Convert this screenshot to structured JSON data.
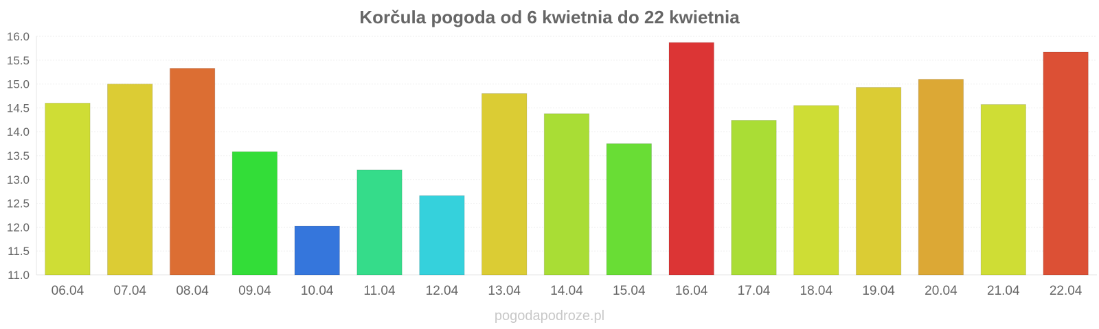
{
  "chart_data": {
    "type": "bar",
    "title": "Korčula pogoda od 6 kwietnia do 22 kwietnia",
    "categories": [
      "06.04",
      "07.04",
      "08.04",
      "09.04",
      "10.04",
      "11.04",
      "12.04",
      "13.04",
      "14.04",
      "15.04",
      "16.04",
      "17.04",
      "18.04",
      "19.04",
      "20.04",
      "21.04",
      "22.04"
    ],
    "values": [
      14.6,
      15.0,
      15.33,
      13.58,
      12.02,
      13.2,
      12.66,
      14.8,
      14.38,
      13.75,
      15.87,
      14.24,
      14.55,
      14.93,
      15.1,
      14.57,
      15.67
    ],
    "colors": [
      "#cfdd35",
      "#dccc34",
      "#dc6e33",
      "#33dd38",
      "#3576dc",
      "#35dc8a",
      "#35d1dc",
      "#dbcc34",
      "#a9dd35",
      "#69dd35",
      "#dc3535",
      "#aadd35",
      "#cedd35",
      "#dbcc34",
      "#dca835",
      "#cfdd35",
      "#dc5035"
    ],
    "ylim": [
      11.0,
      16.0
    ],
    "yticks": [
      "11.0",
      "11.5",
      "12.0",
      "12.5",
      "13.0",
      "13.5",
      "14.0",
      "14.5",
      "15.0",
      "15.5",
      "16.0"
    ],
    "xlabel": "",
    "ylabel": "",
    "grid": true,
    "legend": "none"
  },
  "watermark": "pogodapodroze.pl"
}
